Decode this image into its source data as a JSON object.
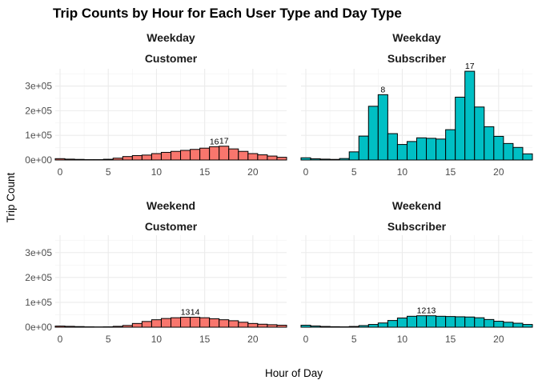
{
  "chart_data": {
    "type": "bar",
    "title": "Trip Counts by Hour for Each User Type and Day Type",
    "xlabel": "Hour of Day",
    "ylabel": "Trip Count",
    "xlim": [
      -0.5,
      23.5
    ],
    "ylim": [
      0,
      370000
    ],
    "x_ticks": [
      0,
      5,
      10,
      15,
      20
    ],
    "y_ticks": [
      0,
      100000,
      200000,
      300000
    ],
    "y_tick_labels": [
      "0e+00",
      "1e+05",
      "2e+05",
      "3e+05"
    ],
    "grid": true,
    "hours": [
      0,
      1,
      2,
      3,
      4,
      5,
      6,
      7,
      8,
      9,
      10,
      11,
      12,
      13,
      14,
      15,
      16,
      17,
      18,
      19,
      20,
      21,
      22,
      23
    ],
    "panels": [
      {
        "strip": [
          "Weekday",
          "Customer"
        ],
        "color": "#F8766D",
        "values": [
          5500,
          3500,
          2500,
          1500,
          1500,
          3000,
          7500,
          14000,
          18000,
          20000,
          26000,
          31000,
          35000,
          39000,
          43000,
          48000,
          54000,
          56000,
          45000,
          35000,
          26000,
          21000,
          16000,
          11000
        ],
        "peak_labels": [
          {
            "hour": 16,
            "text": "16"
          },
          {
            "hour": 17,
            "text": "17"
          }
        ]
      },
      {
        "strip": [
          "Weekday",
          "Subscriber"
        ],
        "color": "#00BFC4",
        "values": [
          9000,
          5000,
          3500,
          2500,
          6000,
          33000,
          97000,
          218000,
          265000,
          107000,
          63000,
          75000,
          90000,
          88000,
          85000,
          123000,
          255000,
          360000,
          215000,
          135000,
          96000,
          67000,
          51000,
          25000
        ],
        "peak_labels": [
          {
            "hour": 8,
            "text": "8"
          },
          {
            "hour": 17,
            "text": "17"
          }
        ]
      },
      {
        "strip": [
          "Weekend",
          "Customer"
        ],
        "color": "#F8766D",
        "values": [
          4500,
          3500,
          2500,
          1500,
          1200,
          1500,
          3500,
          7000,
          15000,
          23000,
          30000,
          35000,
          38000,
          40000,
          40000,
          38000,
          34000,
          30000,
          26000,
          20000,
          15000,
          12000,
          10000,
          8000
        ],
        "peak_labels": [
          {
            "hour": 13,
            "text": "13"
          },
          {
            "hour": 14,
            "text": "14"
          }
        ]
      },
      {
        "strip": [
          "Weekend",
          "Subscriber"
        ],
        "color": "#00BFC4",
        "values": [
          8000,
          5000,
          3000,
          2000,
          1500,
          3000,
          6500,
          11000,
          17000,
          27000,
          37000,
          44000,
          46000,
          46000,
          44000,
          43000,
          42000,
          41000,
          38000,
          31000,
          24000,
          20000,
          16000,
          11000
        ],
        "peak_labels": [
          {
            "hour": 12,
            "text": "12"
          },
          {
            "hour": 13,
            "text": "13"
          }
        ]
      }
    ]
  }
}
